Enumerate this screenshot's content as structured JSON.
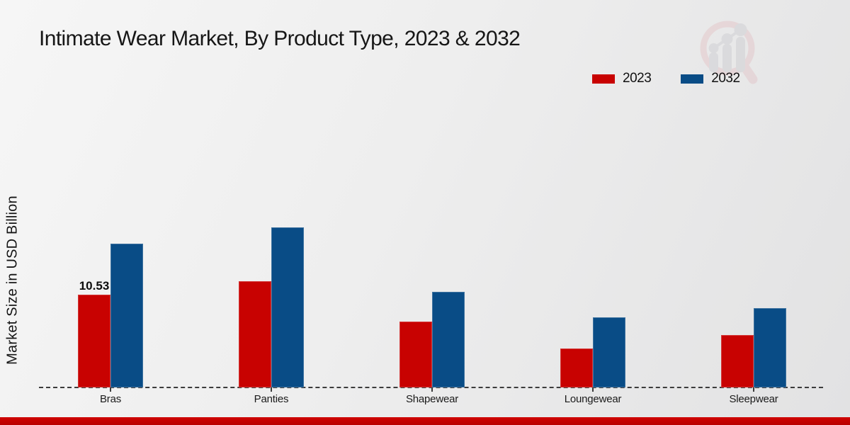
{
  "chart_data": {
    "type": "bar",
    "title": "Intimate Wear Market, By Product Type, 2023 & 2032",
    "ylabel": "Market Size in USD Billion",
    "xlabel": "",
    "categories": [
      "Bras",
      "Panties",
      "Shapewear",
      "Loungewear",
      "Sleepwear"
    ],
    "series": [
      {
        "name": "2023",
        "color": "#c80201",
        "values": [
          10.53,
          12.05,
          7.48,
          4.42,
          5.95
        ]
      },
      {
        "name": "2032",
        "color": "#094c86",
        "values": [
          16.32,
          18.17,
          10.85,
          7.96,
          9.0
        ]
      }
    ],
    "annotations": [
      {
        "category": "Bras",
        "series": "2023",
        "text": "10.53"
      }
    ],
    "legend_position": "top-right",
    "grid": false,
    "baseline_style": "dashed",
    "ylim": [
      0,
      20
    ]
  },
  "accent_colors": {
    "bottom_bar": "#c40100",
    "background_top": "#f6f6f6",
    "background_bottom": "#e2e2e3"
  },
  "logo": {
    "name": "market-research-growth-magnifier-logo",
    "ring_color": "#d98f96",
    "bars_color": "#b9b9bf"
  }
}
